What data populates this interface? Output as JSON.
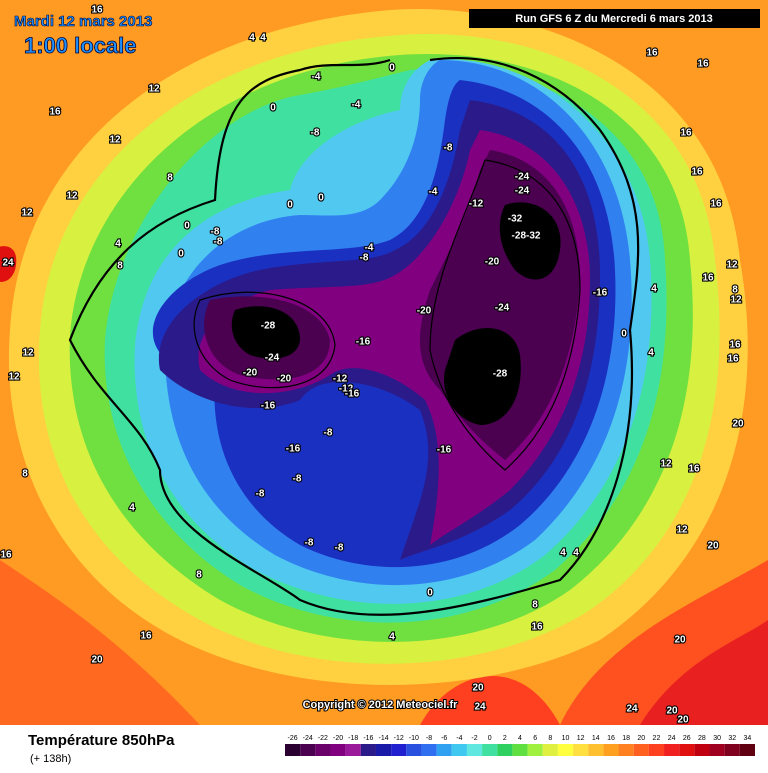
{
  "header": {
    "date": "Mardi 12 mars 2013",
    "time": "1:00 locale",
    "run": "Run GFS 6 Z du Mercredi 6 mars 2013"
  },
  "map": {
    "contour_labels": [
      "16",
      "4",
      "4",
      "0",
      "-4",
      "-4",
      "0",
      "16",
      "16",
      "12",
      "16",
      "12",
      "-8",
      "-8",
      "16",
      "8",
      "12",
      "12",
      "-24",
      "-24",
      "16",
      "16",
      "0",
      "0",
      "-4",
      "-12",
      "-32",
      "-28-32",
      "-8",
      "-8",
      "0",
      "4",
      "8",
      "0",
      "-4",
      "-8",
      "-20",
      "-16",
      "16",
      "12",
      "-28",
      "-20",
      "-24",
      "-16",
      "-24",
      "-20",
      "-20",
      "-12",
      "-12",
      "-16",
      "-28",
      "-16",
      "-8",
      "-16",
      "-16",
      "-8",
      "-8",
      "4",
      "-8",
      "-8",
      "8",
      "16",
      "8",
      "16",
      "20",
      "0",
      "4",
      "16",
      "20",
      "20",
      "12",
      "16",
      "20",
      "12",
      "16",
      "16",
      "8",
      "4",
      "4",
      "0",
      "12",
      "12",
      "20",
      "24",
      "24",
      "20",
      "20",
      "4",
      "4",
      "8",
      "12",
      "24"
    ]
  },
  "copyright": "Copyright © 2012 Meteociel.fr",
  "legend": {
    "title": "Température 850hPa",
    "lead": "(+ 138h)",
    "ticks": [
      -26,
      -24,
      -22,
      -20,
      -18,
      -16,
      -14,
      -12,
      -10,
      -8,
      -6,
      -4,
      -2,
      0,
      2,
      4,
      6,
      8,
      10,
      12,
      14,
      16,
      18,
      20,
      22,
      24,
      26,
      28,
      30,
      32,
      34
    ],
    "colors": [
      "#2a0030",
      "#4b0050",
      "#6a006a",
      "#800080",
      "#9a189a",
      "#2a1a8a",
      "#1a1aa8",
      "#2020d0",
      "#2a50e0",
      "#3070f0",
      "#30a0f0",
      "#40c8f0",
      "#60e8e0",
      "#40e0a0",
      "#30d060",
      "#60e040",
      "#a0f040",
      "#e0f040",
      "#ffff40",
      "#ffe040",
      "#ffc030",
      "#ffa020",
      "#ff8020",
      "#ff6020",
      "#ff4020",
      "#f02020",
      "#e01010",
      "#c00010",
      "#a00020",
      "#800020",
      "#600010"
    ]
  }
}
